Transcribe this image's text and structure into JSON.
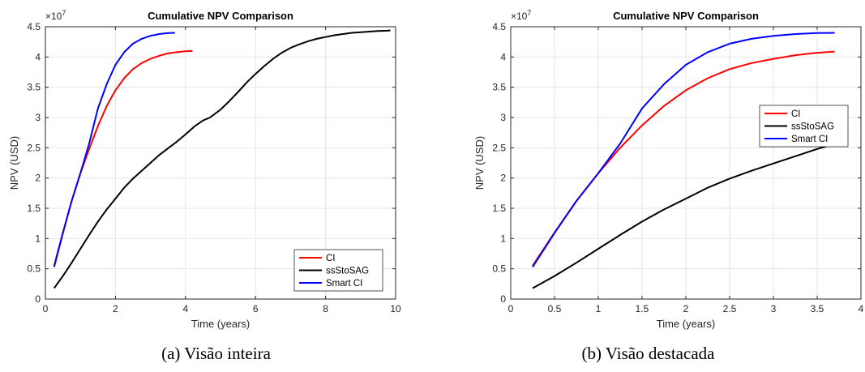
{
  "chart_data": [
    {
      "type": "line",
      "title": "Cumulative NPV Comparison",
      "xlabel": "Time (years)",
      "ylabel": "NPV (USD)",
      "exponent_label": "×10",
      "exponent_power": "7",
      "xlim": [
        0,
        10
      ],
      "ylim": [
        0,
        4.5
      ],
      "xticks": [
        0,
        2,
        4,
        6,
        8,
        10
      ],
      "yticks": [
        0,
        0.5,
        1,
        1.5,
        2,
        2.5,
        3,
        3.5,
        4,
        4.5
      ],
      "xtick_labels": [
        "0",
        "2",
        "4",
        "6",
        "8",
        "10"
      ],
      "ytick_labels": [
        "0",
        "0.5",
        "1",
        "1.5",
        "2",
        "2.5",
        "3",
        "3.5",
        "4",
        "4.5"
      ],
      "grid": true,
      "legend_position": "bottom-right",
      "series": [
        {
          "name": "CI",
          "color": "#ff0000",
          "x": [
            0.25,
            0.5,
            0.75,
            1.0,
            1.25,
            1.5,
            1.75,
            2.0,
            2.25,
            2.5,
            2.75,
            3.0,
            3.25,
            3.5,
            3.75,
            4.0,
            4.2
          ],
          "y": [
            0.55,
            1.1,
            1.62,
            2.08,
            2.48,
            2.86,
            3.19,
            3.45,
            3.65,
            3.8,
            3.9,
            3.97,
            4.02,
            4.06,
            4.08,
            4.095,
            4.1
          ]
        },
        {
          "name": "ssStoSAG",
          "color": "#000000",
          "x": [
            0.25,
            0.5,
            0.75,
            1.0,
            1.25,
            1.5,
            1.75,
            2.0,
            2.25,
            2.5,
            2.75,
            3.0,
            3.25,
            3.5,
            3.75,
            4.0,
            4.25,
            4.5,
            4.7,
            5.0,
            5.25,
            5.5,
            5.75,
            6.0,
            6.25,
            6.5,
            6.75,
            7.0,
            7.25,
            7.5,
            7.75,
            8.0,
            8.25,
            8.5,
            8.75,
            9.0,
            9.25,
            9.5,
            9.75,
            9.85
          ],
          "y": [
            0.18,
            0.38,
            0.6,
            0.83,
            1.06,
            1.28,
            1.48,
            1.66,
            1.84,
            1.99,
            2.12,
            2.25,
            2.38,
            2.49,
            2.6,
            2.72,
            2.85,
            2.95,
            3.0,
            3.13,
            3.27,
            3.42,
            3.58,
            3.72,
            3.85,
            3.97,
            4.07,
            4.15,
            4.21,
            4.26,
            4.3,
            4.33,
            4.36,
            4.38,
            4.4,
            4.41,
            4.42,
            4.43,
            4.435,
            4.44
          ]
        },
        {
          "name": "Smart CI",
          "color": "#0000ff",
          "x": [
            0.25,
            0.5,
            0.75,
            1.0,
            1.25,
            1.5,
            1.75,
            2.0,
            2.25,
            2.5,
            2.75,
            3.0,
            3.25,
            3.5,
            3.7
          ],
          "y": [
            0.53,
            1.09,
            1.62,
            2.08,
            2.57,
            3.15,
            3.55,
            3.87,
            4.08,
            4.22,
            4.3,
            4.35,
            4.38,
            4.395,
            4.4
          ]
        }
      ]
    },
    {
      "type": "line",
      "title": "Cumulative NPV Comparison",
      "xlabel": "Time (years)",
      "ylabel": "NPV (USD)",
      "exponent_label": "×10",
      "exponent_power": "7",
      "xlim": [
        0,
        4
      ],
      "ylim": [
        0,
        4.5
      ],
      "xticks": [
        0,
        0.5,
        1,
        1.5,
        2,
        2.5,
        3,
        3.5,
        4
      ],
      "yticks": [
        0,
        0.5,
        1,
        1.5,
        2,
        2.5,
        3,
        3.5,
        4,
        4.5
      ],
      "xtick_labels": [
        "0",
        "0.5",
        "1",
        "1.5",
        "2",
        "2.5",
        "3",
        "3.5",
        "4"
      ],
      "ytick_labels": [
        "0",
        "0.5",
        "1",
        "1.5",
        "2",
        "2.5",
        "3",
        "3.5",
        "4",
        "4.5"
      ],
      "grid": true,
      "legend_position": "top-right",
      "series": [
        {
          "name": "CI",
          "color": "#ff0000",
          "x": [
            0.25,
            0.5,
            0.75,
            1.0,
            1.25,
            1.5,
            1.75,
            2.0,
            2.25,
            2.5,
            2.75,
            3.0,
            3.25,
            3.5,
            3.7
          ],
          "y": [
            0.55,
            1.1,
            1.62,
            2.08,
            2.5,
            2.87,
            3.19,
            3.45,
            3.65,
            3.8,
            3.9,
            3.97,
            4.03,
            4.07,
            4.09
          ]
        },
        {
          "name": "ssStoSAG",
          "color": "#000000",
          "x": [
            0.25,
            0.5,
            0.75,
            1.0,
            1.25,
            1.5,
            1.75,
            2.0,
            2.25,
            2.5,
            2.75,
            3.0,
            3.25,
            3.5,
            3.7
          ],
          "y": [
            0.18,
            0.38,
            0.6,
            0.83,
            1.06,
            1.28,
            1.48,
            1.66,
            1.84,
            1.99,
            2.12,
            2.24,
            2.36,
            2.48,
            2.56
          ]
        },
        {
          "name": "Smart CI",
          "color": "#0000ff",
          "x": [
            0.25,
            0.5,
            0.75,
            1.0,
            1.25,
            1.5,
            1.75,
            2.0,
            2.25,
            2.5,
            2.75,
            3.0,
            3.25,
            3.5,
            3.7
          ],
          "y": [
            0.53,
            1.09,
            1.62,
            2.08,
            2.57,
            3.15,
            3.55,
            3.87,
            4.08,
            4.22,
            4.3,
            4.35,
            4.38,
            4.395,
            4.4
          ]
        }
      ]
    }
  ],
  "captions": [
    "(a) Visão inteira",
    "(b) Visão destacada"
  ]
}
